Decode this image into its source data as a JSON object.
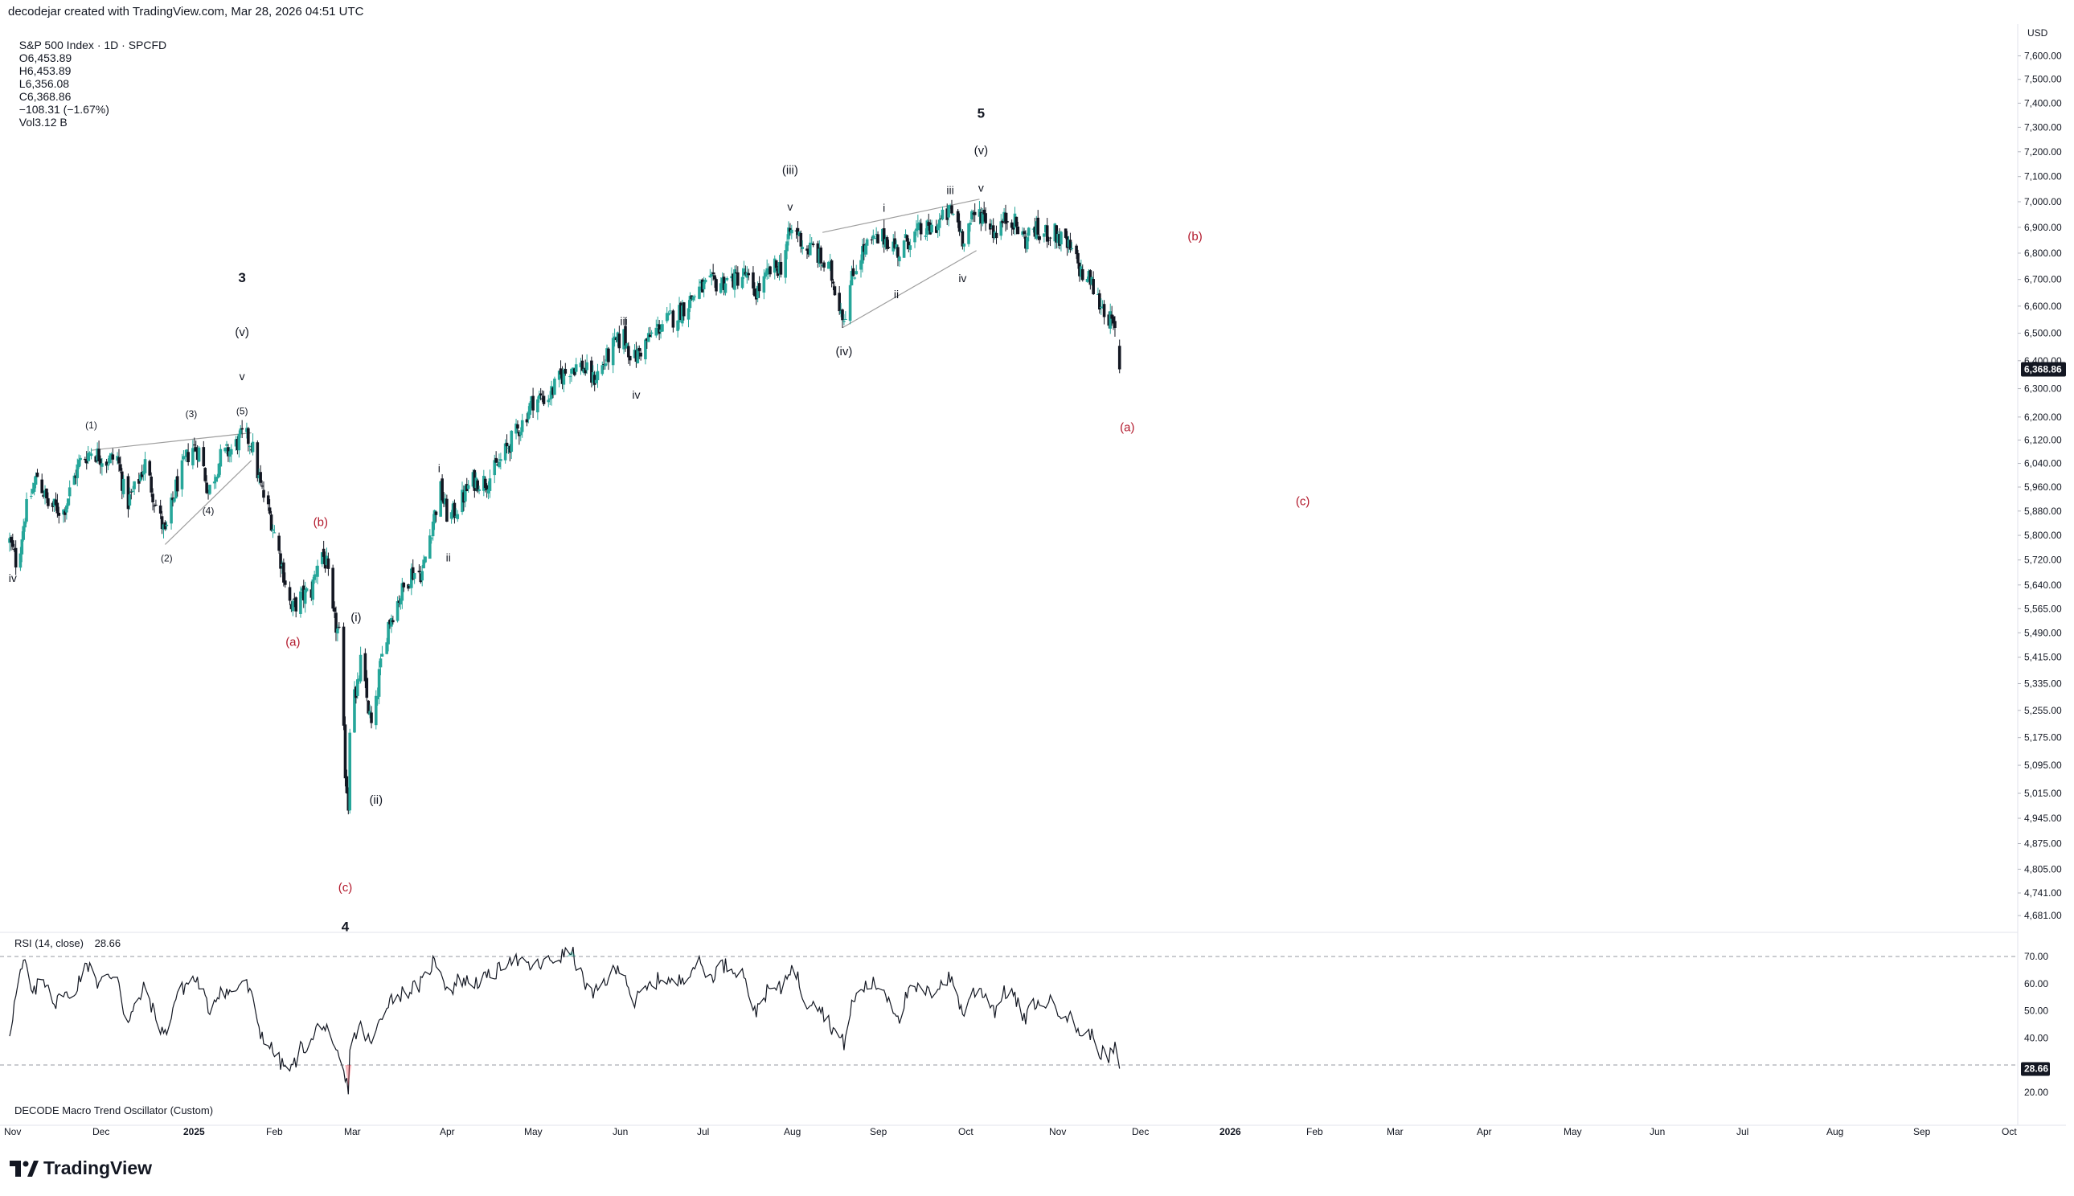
{
  "header": {
    "credit": "decodejar created with TradingView.com, Mar 28, 2026 04:51 UTC",
    "symbol": "S&P 500 Index · 1D · SPCFD",
    "open": "O6,453.89",
    "high": "H6,453.89",
    "low": "L6,356.08",
    "close": "C6,368.86",
    "change": "−108.31 (−1.67%)",
    "volume": "Vol3.12 B"
  },
  "price_axis": {
    "currency": "USD",
    "ticks": [
      "7,600.00",
      "7,500.00",
      "7,400.00",
      "7,300.00",
      "7,200.00",
      "7,100.00",
      "7,000.00",
      "6,900.00",
      "6,800.00",
      "6,700.00",
      "6,600.00",
      "6,500.00",
      "6,400.00",
      "6,300.00",
      "6,200.00",
      "6,120.00",
      "6,040.00",
      "5,960.00",
      "5,880.00",
      "5,800.00",
      "5,720.00",
      "5,640.00",
      "5,565.00",
      "5,490.00",
      "5,415.00",
      "5,335.00",
      "5,255.00",
      "5,175.00",
      "5,095.00",
      "5,015.00",
      "4,945.00",
      "4,875.00",
      "4,805.00",
      "4,741.00",
      "4,681.00"
    ],
    "last_price": "6,368.86",
    "log_scale": true
  },
  "time_axis": {
    "ticks": [
      {
        "label": "Nov",
        "bold": false
      },
      {
        "label": "Dec",
        "bold": false
      },
      {
        "label": "2025",
        "bold": true
      },
      {
        "label": "Feb",
        "bold": false
      },
      {
        "label": "Mar",
        "bold": false
      },
      {
        "label": "Apr",
        "bold": false
      },
      {
        "label": "May",
        "bold": false
      },
      {
        "label": "Jun",
        "bold": false
      },
      {
        "label": "Jul",
        "bold": false
      },
      {
        "label": "Aug",
        "bold": false
      },
      {
        "label": "Sep",
        "bold": false
      },
      {
        "label": "Oct",
        "bold": false
      },
      {
        "label": "Nov",
        "bold": false
      },
      {
        "label": "Dec",
        "bold": false
      },
      {
        "label": "2026",
        "bold": true
      },
      {
        "label": "Feb",
        "bold": false
      },
      {
        "label": "Mar",
        "bold": false
      },
      {
        "label": "Apr",
        "bold": false
      },
      {
        "label": "May",
        "bold": false
      },
      {
        "label": "Jun",
        "bold": false
      },
      {
        "label": "Jul",
        "bold": false
      },
      {
        "label": "Aug",
        "bold": false
      },
      {
        "label": "Sep",
        "bold": false
      },
      {
        "label": "Oct",
        "bold": false
      }
    ]
  },
  "rsi": {
    "title": "RSI (14, close)",
    "value": "28.66",
    "ticks": [
      "70.00",
      "60.00",
      "50.00",
      "40.00",
      "20.00"
    ],
    "levels": [
      70,
      30
    ]
  },
  "oscillator": {
    "title": "DECODE Macro Trend Oscillator (Custom)"
  },
  "colors": {
    "up": "#26a69a",
    "down": "#131722",
    "red_label": "#b2182b",
    "wedge_line": "#9e9e9e"
  },
  "wave_labels": [
    {
      "text": "iv",
      "day": 2,
      "price": 5650,
      "color": "black",
      "size": 14
    },
    {
      "text": "(1)",
      "day": 53,
      "price": 6160,
      "color": "black",
      "size": 12
    },
    {
      "text": "(2)",
      "day": 102,
      "price": 5715,
      "color": "black",
      "size": 12
    },
    {
      "text": "(3)",
      "day": 118,
      "price": 6200,
      "color": "black",
      "size": 12
    },
    {
      "text": "(4)",
      "day": 129,
      "price": 5870,
      "color": "black",
      "size": 12
    },
    {
      "text": "(5)",
      "day": 151,
      "price": 6210,
      "color": "black",
      "size": 12
    },
    {
      "text": "v",
      "day": 151,
      "price": 6330,
      "color": "black",
      "size": 14
    },
    {
      "text": "(v)",
      "day": 151,
      "price": 6490,
      "color": "black",
      "size": 15
    },
    {
      "text": "3",
      "day": 151,
      "price": 6690,
      "color": "black",
      "size": 17
    },
    {
      "text": "(b)",
      "day": 202,
      "price": 5830,
      "color": "red",
      "size": 15
    },
    {
      "text": "(a)",
      "day": 184,
      "price": 5450,
      "color": "red",
      "size": 15
    },
    {
      "text": "(i)",
      "day": 225,
      "price": 5525,
      "color": "black",
      "size": 15
    },
    {
      "text": "(ii)",
      "day": 238,
      "price": 4985,
      "color": "black",
      "size": 15
    },
    {
      "text": "(c)",
      "day": 218,
      "price": 4745,
      "color": "red",
      "size": 15
    },
    {
      "text": "4",
      "day": 218,
      "price": 4640,
      "color": "black",
      "size": 17
    },
    {
      "text": "i",
      "day": 279,
      "price": 6010,
      "color": "black",
      "size": 14
    },
    {
      "text": "ii",
      "day": 285,
      "price": 5715,
      "color": "black",
      "size": 14
    },
    {
      "text": "iii",
      "day": 399,
      "price": 6530,
      "color": "black",
      "size": 14
    },
    {
      "text": "iv",
      "day": 407,
      "price": 6265,
      "color": "black",
      "size": 14
    },
    {
      "text": "(iii)",
      "day": 507,
      "price": 7110,
      "color": "black",
      "size": 15
    },
    {
      "text": "v",
      "day": 507,
      "price": 6965,
      "color": "black",
      "size": 14
    },
    {
      "text": "(iv)",
      "day": 542,
      "price": 6420,
      "color": "black",
      "size": 15
    },
    {
      "text": "i",
      "day": 568,
      "price": 6960,
      "color": "black",
      "size": 14
    },
    {
      "text": "ii",
      "day": 576,
      "price": 6630,
      "color": "black",
      "size": 14
    },
    {
      "text": "iii",
      "day": 611,
      "price": 7030,
      "color": "black",
      "size": 14
    },
    {
      "text": "iv",
      "day": 619,
      "price": 6690,
      "color": "black",
      "size": 14
    },
    {
      "text": "v",
      "day": 631,
      "price": 7040,
      "color": "black",
      "size": 14
    },
    {
      "text": "(v)",
      "day": 631,
      "price": 7190,
      "color": "black",
      "size": 15
    },
    {
      "text": "5",
      "day": 631,
      "price": 7340,
      "color": "black",
      "size": 17
    },
    {
      "text": "(a)",
      "day": 726,
      "price": 6150,
      "color": "red",
      "size": 15
    },
    {
      "text": "(b)",
      "day": 770,
      "price": 6850,
      "color": "red",
      "size": 15
    },
    {
      "text": "(c)",
      "day": 840,
      "price": 5900,
      "color": "red",
      "size": 15
    }
  ],
  "wedge_lines": [
    {
      "from": {
        "day": 53,
        "price": 6085
      },
      "to": {
        "day": 157,
        "price": 6145
      }
    },
    {
      "from": {
        "day": 101,
        "price": 5770
      },
      "to": {
        "day": 157,
        "price": 6050
      }
    },
    {
      "from": {
        "day": 528,
        "price": 6880
      },
      "to": {
        "day": 630,
        "price": 7010
      }
    },
    {
      "from": {
        "day": 541,
        "price": 6520
      },
      "to": {
        "day": 628,
        "price": 6810
      }
    }
  ],
  "chart_data": {
    "type": "candlestick",
    "title": "S&P 500 Index · 1D · SPCFD",
    "y_scale": "log",
    "ylim": [
      4640,
      7680
    ],
    "price_anchors": [
      [
        0,
        5780
      ],
      [
        5,
        5700
      ],
      [
        10,
        5870
      ],
      [
        18,
        6000
      ],
      [
        25,
        5900
      ],
      [
        35,
        5880
      ],
      [
        45,
        6040
      ],
      [
        53,
        6085
      ],
      [
        63,
        6050
      ],
      [
        70,
        6060
      ],
      [
        76,
        5900
      ],
      [
        82,
        5960
      ],
      [
        88,
        6040
      ],
      [
        95,
        5900
      ],
      [
        101,
        5800
      ],
      [
        108,
        5960
      ],
      [
        118,
        6100
      ],
      [
        124,
        6080
      ],
      [
        129,
        5940
      ],
      [
        137,
        6060
      ],
      [
        145,
        6090
      ],
      [
        152,
        6140
      ],
      [
        157,
        6110
      ],
      [
        163,
        5960
      ],
      [
        170,
        5850
      ],
      [
        177,
        5700
      ],
      [
        183,
        5560
      ],
      [
        189,
        5600
      ],
      [
        196,
        5620
      ],
      [
        202,
        5760
      ],
      [
        206,
        5700
      ],
      [
        210,
        5540
      ],
      [
        214,
        5480
      ],
      [
        218,
        5080
      ],
      [
        220,
        4980
      ],
      [
        222,
        5450
      ],
      [
        225,
        5280
      ],
      [
        228,
        5400
      ],
      [
        232,
        5290
      ],
      [
        236,
        5180
      ],
      [
        240,
        5360
      ],
      [
        246,
        5520
      ],
      [
        253,
        5600
      ],
      [
        261,
        5680
      ],
      [
        268,
        5680
      ],
      [
        275,
        5850
      ],
      [
        280,
        5950
      ],
      [
        285,
        5850
      ],
      [
        292,
        5900
      ],
      [
        300,
        5980
      ],
      [
        310,
        5980
      ],
      [
        318,
        6040
      ],
      [
        325,
        6110
      ],
      [
        333,
        6180
      ],
      [
        340,
        6260
      ],
      [
        350,
        6270
      ],
      [
        358,
        6340
      ],
      [
        365,
        6380
      ],
      [
        372,
        6380
      ],
      [
        379,
        6330
      ],
      [
        385,
        6380
      ],
      [
        392,
        6450
      ],
      [
        399,
        6490
      ],
      [
        405,
        6400
      ],
      [
        410,
        6440
      ],
      [
        418,
        6500
      ],
      [
        425,
        6540
      ],
      [
        432,
        6560
      ],
      [
        440,
        6610
      ],
      [
        447,
        6660
      ],
      [
        455,
        6680
      ],
      [
        462,
        6690
      ],
      [
        470,
        6700
      ],
      [
        478,
        6720
      ],
      [
        483,
        6640
      ],
      [
        490,
        6690
      ],
      [
        495,
        6740
      ],
      [
        501,
        6750
      ],
      [
        507,
        6880
      ],
      [
        512,
        6880
      ],
      [
        517,
        6810
      ],
      [
        522,
        6820
      ],
      [
        528,
        6760
      ],
      [
        533,
        6730
      ],
      [
        539,
        6610
      ],
      [
        542,
        6560
      ],
      [
        547,
        6700
      ],
      [
        553,
        6800
      ],
      [
        560,
        6840
      ],
      [
        568,
        6860
      ],
      [
        573,
        6840
      ],
      [
        578,
        6800
      ],
      [
        583,
        6850
      ],
      [
        590,
        6880
      ],
      [
        598,
        6890
      ],
      [
        604,
        6920
      ],
      [
        611,
        6960
      ],
      [
        615,
        6940
      ],
      [
        619,
        6860
      ],
      [
        624,
        6920
      ],
      [
        630,
        6960
      ],
      [
        634,
        6940
      ],
      [
        640,
        6880
      ],
      [
        645,
        6920
      ],
      [
        650,
        6950
      ],
      [
        655,
        6890
      ],
      [
        660,
        6850
      ],
      [
        665,
        6900
      ],
      [
        670,
        6860
      ],
      [
        674,
        6880
      ],
      [
        678,
        6880
      ],
      [
        683,
        6850
      ],
      [
        688,
        6820
      ],
      [
        693,
        6770
      ],
      [
        698,
        6700
      ],
      [
        702,
        6700
      ],
      [
        706,
        6630
      ],
      [
        710,
        6600
      ],
      [
        714,
        6560
      ],
      [
        718,
        6500
      ],
      [
        720,
        6469
      ],
      [
        721,
        6369
      ]
    ],
    "last_day": 721,
    "rsi_anchors": [
      [
        0,
        42
      ],
      [
        6,
        62
      ],
      [
        10,
        68
      ],
      [
        15,
        55
      ],
      [
        20,
        62
      ],
      [
        25,
        60
      ],
      [
        30,
        52
      ],
      [
        35,
        58
      ],
      [
        40,
        52
      ],
      [
        45,
        62
      ],
      [
        50,
        66
      ],
      [
        53,
        68
      ],
      [
        57,
        60
      ],
      [
        63,
        62
      ],
      [
        70,
        64
      ],
      [
        76,
        44
      ],
      [
        82,
        52
      ],
      [
        88,
        59
      ],
      [
        95,
        47
      ],
      [
        101,
        41
      ],
      [
        108,
        55
      ],
      [
        118,
        62
      ],
      [
        124,
        60
      ],
      [
        129,
        50
      ],
      [
        137,
        58
      ],
      [
        145,
        56
      ],
      [
        152,
        62
      ],
      [
        157,
        55
      ],
      [
        163,
        42
      ],
      [
        170,
        36
      ],
      [
        177,
        30
      ],
      [
        183,
        28
      ],
      [
        189,
        36
      ],
      [
        196,
        38
      ],
      [
        202,
        47
      ],
      [
        206,
        42
      ],
      [
        210,
        35
      ],
      [
        214,
        33
      ],
      [
        218,
        24
      ],
      [
        220,
        22
      ],
      [
        222,
        46
      ],
      [
        225,
        41
      ],
      [
        228,
        44
      ],
      [
        232,
        40
      ],
      [
        236,
        37
      ],
      [
        240,
        46
      ],
      [
        246,
        54
      ],
      [
        253,
        56
      ],
      [
        261,
        58
      ],
      [
        268,
        60
      ],
      [
        275,
        68
      ],
      [
        280,
        66
      ],
      [
        285,
        56
      ],
      [
        292,
        62
      ],
      [
        300,
        60
      ],
      [
        310,
        62
      ],
      [
        318,
        65
      ],
      [
        325,
        70
      ],
      [
        333,
        67
      ],
      [
        340,
        66
      ],
      [
        350,
        68
      ],
      [
        358,
        70
      ],
      [
        365,
        72
      ],
      [
        372,
        62
      ],
      [
        379,
        55
      ],
      [
        385,
        60
      ],
      [
        392,
        64
      ],
      [
        399,
        66
      ],
      [
        405,
        52
      ],
      [
        410,
        56
      ],
      [
        418,
        60
      ],
      [
        425,
        63
      ],
      [
        432,
        59
      ],
      [
        440,
        64
      ],
      [
        447,
        68
      ],
      [
        455,
        62
      ],
      [
        462,
        67
      ],
      [
        470,
        66
      ],
      [
        478,
        63
      ],
      [
        483,
        48
      ],
      [
        490,
        56
      ],
      [
        495,
        58
      ],
      [
        501,
        58
      ],
      [
        507,
        66
      ],
      [
        512,
        62
      ],
      [
        517,
        52
      ],
      [
        522,
        55
      ],
      [
        528,
        50
      ],
      [
        533,
        45
      ],
      [
        539,
        40
      ],
      [
        542,
        38
      ],
      [
        547,
        52
      ],
      [
        553,
        58
      ],
      [
        560,
        60
      ],
      [
        568,
        58
      ],
      [
        573,
        52
      ],
      [
        578,
        48
      ],
      [
        583,
        56
      ],
      [
        590,
        58
      ],
      [
        598,
        56
      ],
      [
        604,
        60
      ],
      [
        611,
        62
      ],
      [
        615,
        58
      ],
      [
        619,
        48
      ],
      [
        624,
        56
      ],
      [
        630,
        58
      ],
      [
        634,
        56
      ],
      [
        640,
        50
      ],
      [
        645,
        56
      ],
      [
        650,
        58
      ],
      [
        655,
        52
      ],
      [
        660,
        46
      ],
      [
        665,
        54
      ],
      [
        670,
        50
      ],
      [
        674,
        54
      ],
      [
        678,
        52
      ],
      [
        683,
        50
      ],
      [
        688,
        48
      ],
      [
        693,
        44
      ],
      [
        698,
        40
      ],
      [
        702,
        42
      ],
      [
        706,
        37
      ],
      [
        710,
        34
      ],
      [
        714,
        33
      ],
      [
        718,
        36
      ],
      [
        720,
        34
      ],
      [
        721,
        28.66
      ]
    ]
  }
}
